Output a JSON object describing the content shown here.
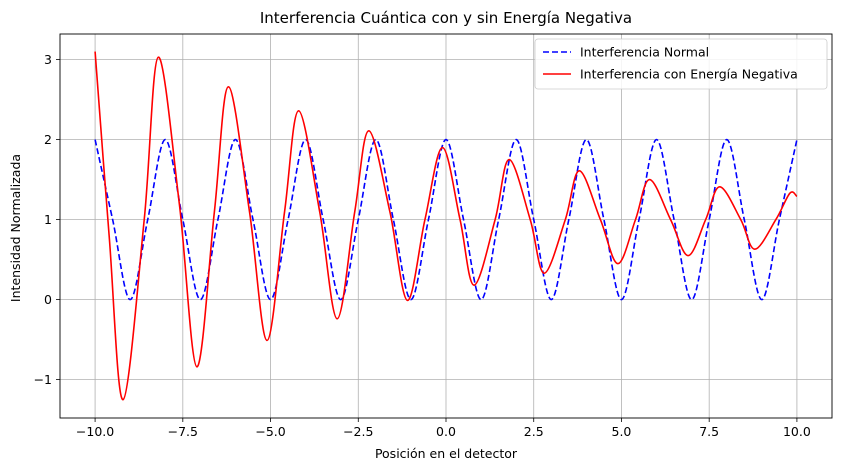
{
  "chart_data": {
    "type": "line",
    "title": "Interferencia Cuántica con y sin Energía Negativa",
    "xlabel": "Posición en el detector",
    "ylabel": "Intensidad Normalizada",
    "xlim": [
      -11,
      11
    ],
    "ylim": [
      -1.48,
      3.32
    ],
    "xticks": [
      -10.0,
      -7.5,
      -5.0,
      -2.5,
      0.0,
      2.5,
      5.0,
      7.5,
      10.0
    ],
    "xtick_labels": [
      "−10.0",
      "−7.5",
      "−5.0",
      "−2.5",
      "0.0",
      "2.5",
      "5.0",
      "7.5",
      "10.0"
    ],
    "yticks": [
      -1,
      0,
      1,
      2,
      3
    ],
    "ytick_labels": [
      "−1",
      "0",
      "1",
      "2",
      "3"
    ],
    "grid": true,
    "legend_position": "top-right",
    "series": [
      {
        "name": "Interferencia Normal",
        "color": "#0000ff",
        "style": "dashed",
        "x": [
          -10.0,
          -9.5,
          -9.0,
          -8.5,
          -8.0,
          -7.5,
          -7.0,
          -6.5,
          -6.0,
          -5.5,
          -5.0,
          -4.5,
          -4.0,
          -3.5,
          -3.0,
          -2.5,
          -2.0,
          -1.5,
          -1.0,
          -0.5,
          0.0,
          0.5,
          1.0,
          1.5,
          2.0,
          2.5,
          3.0,
          3.5,
          4.0,
          4.5,
          5.0,
          5.5,
          6.0,
          6.5,
          7.0,
          7.5,
          8.0,
          8.5,
          9.0,
          9.5,
          10.0
        ],
        "y": [
          2.0,
          1.0,
          0.0,
          1.0,
          2.0,
          1.0,
          0.0,
          1.0,
          2.0,
          1.0,
          0.0,
          1.0,
          2.0,
          1.0,
          0.0,
          1.0,
          2.0,
          1.0,
          0.0,
          1.0,
          2.0,
          1.0,
          0.0,
          1.0,
          2.0,
          1.0,
          0.0,
          1.0,
          2.0,
          1.0,
          0.0,
          1.0,
          2.0,
          1.0,
          0.0,
          1.0,
          2.0,
          1.0,
          0.0,
          1.0,
          2.0
        ]
      },
      {
        "name": "Interferencia con Energía Negativa",
        "color": "#ff0000",
        "style": "solid",
        "x": [
          -10.0,
          -9.6,
          -9.2,
          -8.6,
          -8.2,
          -7.6,
          -7.1,
          -6.6,
          -6.2,
          -5.6,
          -5.1,
          -4.6,
          -4.2,
          -3.6,
          -3.1,
          -2.6,
          -2.2,
          -1.6,
          -1.1,
          -0.6,
          -0.1,
          0.4,
          0.8,
          1.4,
          1.8,
          2.4,
          2.8,
          3.4,
          3.8,
          4.4,
          4.9,
          5.4,
          5.8,
          6.4,
          6.9,
          7.4,
          7.8,
          8.4,
          8.8,
          9.4,
          9.8,
          10.0
        ],
        "y": [
          3.1,
          0.8,
          -1.25,
          1.0,
          3.03,
          1.2,
          -0.84,
          1.1,
          2.66,
          1.1,
          -0.51,
          1.1,
          2.36,
          1.1,
          -0.24,
          1.1,
          2.11,
          1.1,
          -0.01,
          1.0,
          1.9,
          1.0,
          0.18,
          1.0,
          1.75,
          1.0,
          0.33,
          1.0,
          1.61,
          1.0,
          0.45,
          1.0,
          1.5,
          1.0,
          0.55,
          1.0,
          1.41,
          1.0,
          0.63,
          1.0,
          1.33,
          1.29
        ]
      }
    ]
  }
}
